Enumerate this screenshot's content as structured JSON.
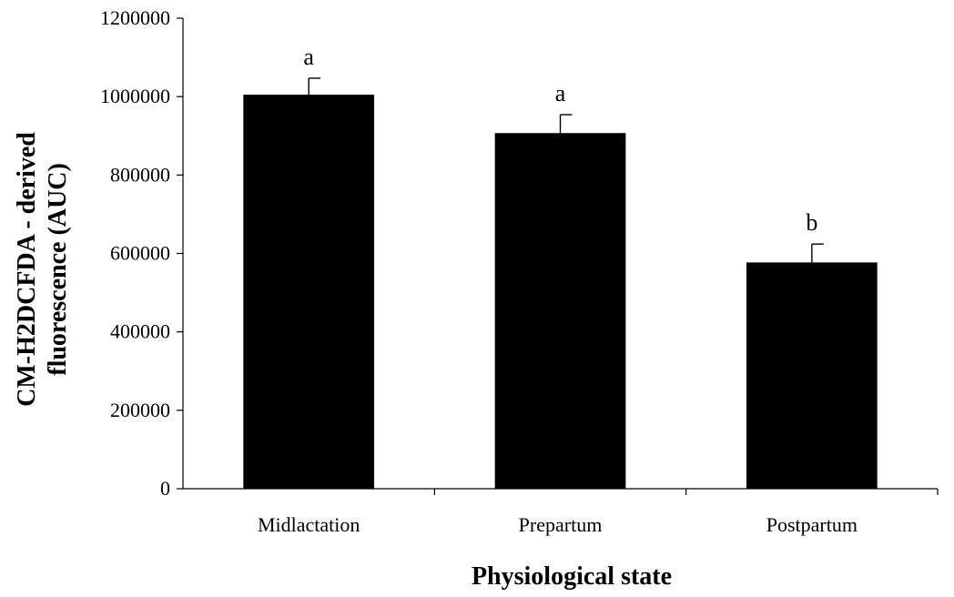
{
  "chart_data": {
    "type": "bar",
    "categories": [
      "Midlactation",
      "Prepartum",
      "Postpartum"
    ],
    "series": [
      {
        "values": [
          1005000,
          907000,
          577000
        ],
        "errors": [
          42000,
          47000,
          47000
        ],
        "significance": [
          "a",
          "a",
          "b"
        ],
        "color": "#000000"
      }
    ],
    "title": "",
    "xlabel": "Physiological state",
    "ylabel_lines": [
      "CM-H2DCFDA - derived",
      "fluorescence (AUC)"
    ],
    "ylim": [
      0,
      1200000
    ],
    "yticks": [
      0,
      200000,
      400000,
      600000,
      800000,
      1000000,
      1200000
    ],
    "ytick_labels": [
      "0",
      "200000",
      "400000",
      "600000",
      "800000",
      "1000000",
      "1200000"
    ],
    "grid": false,
    "legend": "none"
  }
}
